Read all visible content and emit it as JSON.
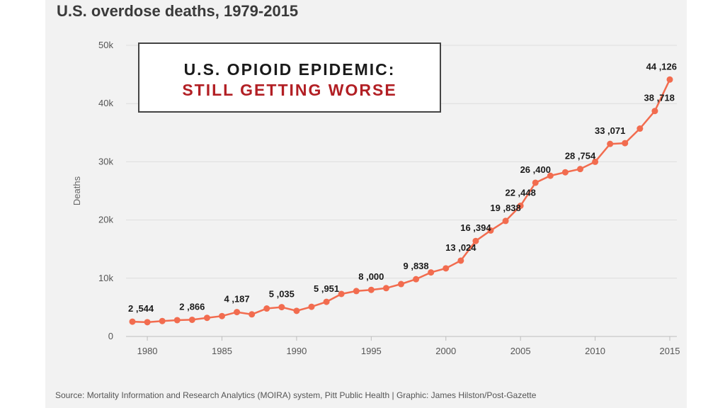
{
  "colors": {
    "line": "#f26c4f",
    "grid": "#dddddd",
    "accent_red": "#b21f24"
  },
  "banner": {
    "line1": "U.S. OPIOID EPIDEMIC:",
    "line2": "STILL GETTING WORSE"
  },
  "source": "Source: Mortality Information and Research Analytics (MOIRA) system, Pitt Public Health | Graphic: James Hilston/Post-Gazette",
  "chart_data": {
    "type": "line",
    "title": "U.S. overdose deaths, 1979-2015",
    "ylabel": "Deaths",
    "xlabel": "",
    "xlim": [
      1979,
      2015
    ],
    "ylim": [
      0,
      50000
    ],
    "grid": true,
    "x_ticks": [
      1980,
      1985,
      1990,
      1995,
      2000,
      2005,
      2010,
      2015
    ],
    "y_ticks": [
      {
        "value": 0,
        "label": "0"
      },
      {
        "value": 10000,
        "label": "10k"
      },
      {
        "value": 20000,
        "label": "20k"
      },
      {
        "value": 30000,
        "label": "30k"
      },
      {
        "value": 40000,
        "label": "40k"
      },
      {
        "value": 50000,
        "label": "50k"
      }
    ],
    "x": [
      1979,
      1980,
      1981,
      1982,
      1983,
      1984,
      1985,
      1986,
      1987,
      1988,
      1989,
      1990,
      1991,
      1992,
      1993,
      1994,
      1995,
      1996,
      1997,
      1998,
      1999,
      2000,
      2001,
      2002,
      2003,
      2004,
      2005,
      2006,
      2007,
      2008,
      2009,
      2010,
      2011,
      2012,
      2013,
      2014,
      2015
    ],
    "series": [
      {
        "values": [
          2544,
          2450,
          2650,
          2800,
          2866,
          3200,
          3500,
          4187,
          3800,
          4800,
          5035,
          4400,
          5100,
          5951,
          7300,
          7800,
          8000,
          8300,
          9000,
          9838,
          11000,
          11700,
          13024,
          16394,
          18200,
          19838,
          22448,
          26400,
          27600,
          28200,
          28754,
          30000,
          33071,
          33200,
          35700,
          38718,
          44126
        ]
      }
    ],
    "data_labels": [
      {
        "x": 1979,
        "text": "2 ,544"
      },
      {
        "x": 1983,
        "text": "2 ,866"
      },
      {
        "x": 1986,
        "text": "4 ,187"
      },
      {
        "x": 1989,
        "text": "5 ,035"
      },
      {
        "x": 1992,
        "text": "5 ,951"
      },
      {
        "x": 1995,
        "text": "8 ,000"
      },
      {
        "x": 1998,
        "text": "9 ,838"
      },
      {
        "x": 2001,
        "text": "13 ,024"
      },
      {
        "x": 2002,
        "text": "16 ,394"
      },
      {
        "x": 2004,
        "text": "19 ,838"
      },
      {
        "x": 2005,
        "text": "22 ,448"
      },
      {
        "x": 2006,
        "text": "26 ,400"
      },
      {
        "x": 2009,
        "text": "28 ,754"
      },
      {
        "x": 2011,
        "text": "33 ,071"
      },
      {
        "x": 2014,
        "text": "38 ,718"
      },
      {
        "x": 2015,
        "text": "44 ,126"
      }
    ]
  }
}
